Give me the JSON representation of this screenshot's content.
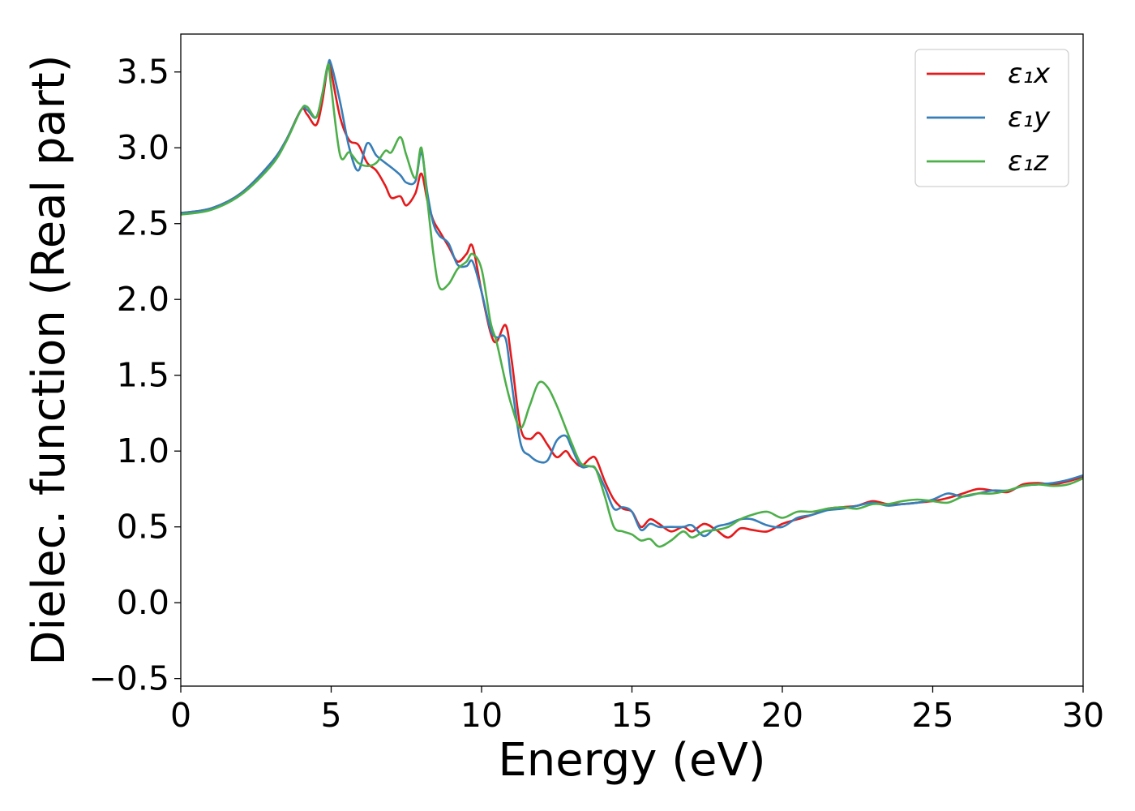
{
  "chart_data": {
    "type": "line",
    "xlabel": "Energy (eV)",
    "ylabel": "Dielec. function (Real part)",
    "xlim": [
      0,
      30
    ],
    "ylim": [
      -0.55,
      3.75
    ],
    "xticks": [
      0,
      5,
      10,
      15,
      20,
      25,
      30
    ],
    "xtick_labels": [
      "0",
      "5",
      "10",
      "15",
      "20",
      "25",
      "30"
    ],
    "yticks": [
      -0.5,
      0.0,
      0.5,
      1.0,
      1.5,
      2.0,
      2.5,
      3.0,
      3.5
    ],
    "ytick_labels": [
      "−0.5",
      "0.0",
      "0.5",
      "1.0",
      "1.5",
      "2.0",
      "2.5",
      "3.0",
      "3.5"
    ],
    "grid": false,
    "legend_position": "top-right",
    "series": [
      {
        "name": "ε₁x",
        "color": "#e41a1c",
        "x": [
          0,
          1,
          2,
          3,
          3.5,
          4.0,
          4.2,
          4.5,
          4.7,
          4.9,
          5.0,
          5.3,
          5.6,
          5.9,
          6.2,
          6.5,
          6.8,
          7.0,
          7.3,
          7.5,
          7.8,
          8.0,
          8.2,
          8.4,
          8.6,
          8.9,
          9.2,
          9.5,
          9.7,
          10.0,
          10.3,
          10.5,
          10.8,
          11.0,
          11.3,
          11.6,
          11.9,
          12.2,
          12.5,
          12.8,
          13.0,
          13.3,
          13.6,
          13.8,
          14.1,
          14.4,
          14.7,
          15.0,
          15.3,
          15.6,
          15.9,
          16.3,
          16.7,
          17.0,
          17.4,
          17.8,
          18.2,
          18.6,
          19.0,
          19.5,
          20.0,
          20.5,
          21.0,
          21.5,
          22.0,
          22.5,
          23.0,
          23.5,
          24.0,
          24.5,
          25.0,
          25.5,
          26.0,
          26.5,
          27.0,
          27.5,
          28.0,
          28.5,
          29.0,
          29.5,
          30.0
        ],
        "y": [
          2.57,
          2.6,
          2.7,
          2.9,
          3.05,
          3.25,
          3.22,
          3.15,
          3.3,
          3.55,
          3.5,
          3.2,
          3.05,
          3.02,
          2.9,
          2.85,
          2.75,
          2.67,
          2.68,
          2.62,
          2.7,
          2.83,
          2.65,
          2.52,
          2.45,
          2.35,
          2.25,
          2.3,
          2.35,
          2.05,
          1.78,
          1.72,
          1.83,
          1.6,
          1.15,
          1.08,
          1.12,
          1.04,
          0.96,
          1.0,
          0.95,
          0.9,
          0.95,
          0.95,
          0.8,
          0.68,
          0.62,
          0.6,
          0.5,
          0.55,
          0.52,
          0.47,
          0.5,
          0.47,
          0.52,
          0.48,
          0.43,
          0.49,
          0.48,
          0.47,
          0.52,
          0.55,
          0.58,
          0.62,
          0.63,
          0.64,
          0.67,
          0.65,
          0.65,
          0.66,
          0.67,
          0.69,
          0.72,
          0.75,
          0.74,
          0.73,
          0.78,
          0.79,
          0.78,
          0.8,
          0.83
        ]
      },
      {
        "name": "ε₁y",
        "color": "#377eb8",
        "x": [
          0,
          1,
          2,
          3,
          3.5,
          4.0,
          4.2,
          4.5,
          4.7,
          4.9,
          5.0,
          5.3,
          5.6,
          5.9,
          6.2,
          6.5,
          6.8,
          7.0,
          7.3,
          7.5,
          7.8,
          8.0,
          8.2,
          8.4,
          8.6,
          8.9,
          9.2,
          9.5,
          9.7,
          10.0,
          10.3,
          10.5,
          10.8,
          11.0,
          11.3,
          11.6,
          11.9,
          12.2,
          12.5,
          12.8,
          13.0,
          13.3,
          13.6,
          13.8,
          14.1,
          14.4,
          14.7,
          15.0,
          15.3,
          15.6,
          15.9,
          16.3,
          16.7,
          17.0,
          17.4,
          17.8,
          18.2,
          18.6,
          19.0,
          19.5,
          20.0,
          20.5,
          21.0,
          21.5,
          22.0,
          22.5,
          23.0,
          23.5,
          24.0,
          24.5,
          25.0,
          25.5,
          26.0,
          26.5,
          27.0,
          27.5,
          28.0,
          28.5,
          29.0,
          29.5,
          30.0
        ],
        "y": [
          2.57,
          2.6,
          2.7,
          2.9,
          3.05,
          3.25,
          3.25,
          3.2,
          3.35,
          3.55,
          3.55,
          3.3,
          3.0,
          2.85,
          3.03,
          2.95,
          2.9,
          2.87,
          2.82,
          2.77,
          2.78,
          2.97,
          2.7,
          2.5,
          2.42,
          2.37,
          2.23,
          2.22,
          2.25,
          2.05,
          1.8,
          1.75,
          1.74,
          1.45,
          1.05,
          0.97,
          0.93,
          0.94,
          1.07,
          1.1,
          1.02,
          0.9,
          0.9,
          0.88,
          0.76,
          0.62,
          0.63,
          0.6,
          0.48,
          0.52,
          0.5,
          0.5,
          0.5,
          0.51,
          0.44,
          0.5,
          0.52,
          0.55,
          0.55,
          0.51,
          0.5,
          0.56,
          0.58,
          0.61,
          0.62,
          0.64,
          0.66,
          0.64,
          0.65,
          0.66,
          0.68,
          0.72,
          0.7,
          0.72,
          0.74,
          0.74,
          0.77,
          0.78,
          0.79,
          0.81,
          0.84
        ]
      },
      {
        "name": "ε₁z",
        "color": "#4daf4a",
        "x": [
          0,
          1,
          2,
          3,
          3.5,
          4.0,
          4.2,
          4.5,
          4.7,
          4.9,
          5.0,
          5.3,
          5.6,
          5.9,
          6.2,
          6.5,
          6.8,
          7.0,
          7.3,
          7.5,
          7.8,
          8.0,
          8.2,
          8.4,
          8.6,
          8.9,
          9.2,
          9.5,
          9.7,
          10.0,
          10.3,
          10.5,
          10.8,
          11.0,
          11.3,
          11.6,
          11.9,
          12.2,
          12.5,
          12.8,
          13.0,
          13.3,
          13.6,
          13.8,
          14.1,
          14.4,
          14.7,
          15.0,
          15.3,
          15.6,
          15.9,
          16.3,
          16.7,
          17.0,
          17.4,
          17.8,
          18.2,
          18.6,
          19.0,
          19.5,
          20.0,
          20.5,
          21.0,
          21.5,
          22.0,
          22.5,
          23.0,
          23.5,
          24.0,
          24.5,
          25.0,
          25.5,
          26.0,
          26.5,
          27.0,
          27.5,
          28.0,
          28.5,
          29.0,
          29.5,
          30.0
        ],
        "y": [
          2.56,
          2.59,
          2.69,
          2.88,
          3.04,
          3.25,
          3.27,
          3.2,
          3.35,
          3.55,
          3.4,
          2.95,
          2.97,
          2.9,
          2.88,
          2.9,
          2.98,
          2.97,
          3.07,
          2.95,
          2.8,
          3.0,
          2.65,
          2.3,
          2.08,
          2.1,
          2.2,
          2.25,
          2.3,
          2.2,
          1.85,
          1.72,
          1.45,
          1.3,
          1.15,
          1.3,
          1.45,
          1.42,
          1.3,
          1.15,
          1.05,
          0.92,
          0.9,
          0.88,
          0.7,
          0.5,
          0.47,
          0.45,
          0.41,
          0.42,
          0.37,
          0.41,
          0.47,
          0.43,
          0.47,
          0.48,
          0.5,
          0.55,
          0.58,
          0.6,
          0.56,
          0.6,
          0.6,
          0.62,
          0.63,
          0.62,
          0.65,
          0.65,
          0.67,
          0.68,
          0.67,
          0.66,
          0.7,
          0.72,
          0.72,
          0.74,
          0.77,
          0.78,
          0.77,
          0.78,
          0.82
        ]
      }
    ]
  }
}
